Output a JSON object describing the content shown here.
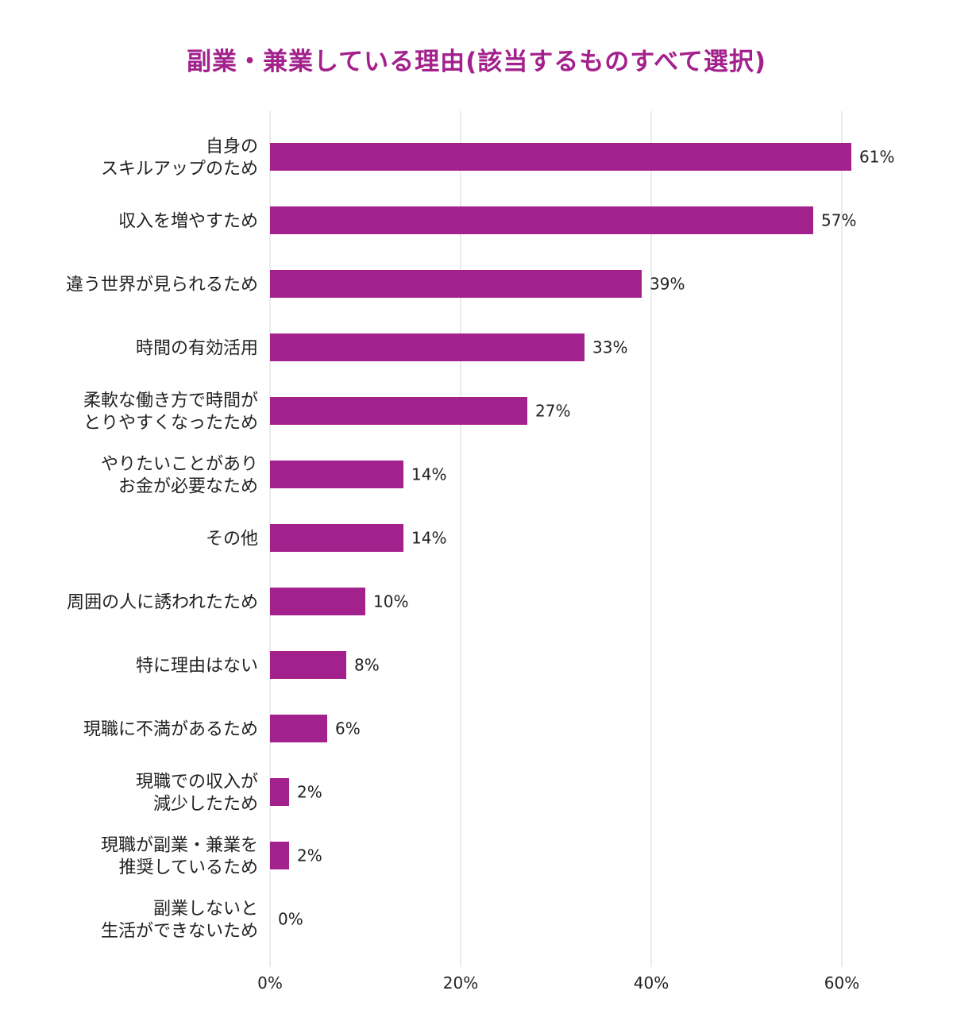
{
  "chart_data": {
    "type": "bar",
    "orientation": "horizontal",
    "title": "副業・兼業している理由(該当するものすべて選択)",
    "categories": [
      [
        "自身の",
        "スキルアップのため"
      ],
      [
        "収入を増やすため"
      ],
      [
        "違う世界が見られるため"
      ],
      [
        "時間の有効活用"
      ],
      [
        "柔軟な働き方で時間が",
        "とりやすくなったため"
      ],
      [
        "やりたいことがあり",
        "お金が必要なため"
      ],
      [
        "その他"
      ],
      [
        "周囲の人に誘われたため"
      ],
      [
        "特に理由はない"
      ],
      [
        "現職に不満があるため"
      ],
      [
        "現職での収入が",
        "減少したため"
      ],
      [
        "現職が副業・兼業を",
        "推奨しているため"
      ],
      [
        "副業しないと",
        "生活ができないため"
      ]
    ],
    "values": [
      61,
      57,
      39,
      33,
      27,
      14,
      14,
      10,
      8,
      6,
      2,
      2,
      0
    ],
    "value_labels": [
      "61%",
      "57%",
      "39%",
      "33%",
      "27%",
      "14%",
      "14%",
      "10%",
      "8%",
      "6%",
      "2%",
      "2%",
      "0%"
    ],
    "x_ticks": [
      "0%",
      "20%",
      "40%",
      "60%"
    ],
    "x_tick_values": [
      0,
      20,
      40,
      60
    ],
    "xlim": [
      0,
      65
    ],
    "grid": true,
    "legend": "none",
    "bar_color": "#a3218c",
    "grid_color": "#e6e6e6",
    "xlabel": "",
    "ylabel": ""
  }
}
